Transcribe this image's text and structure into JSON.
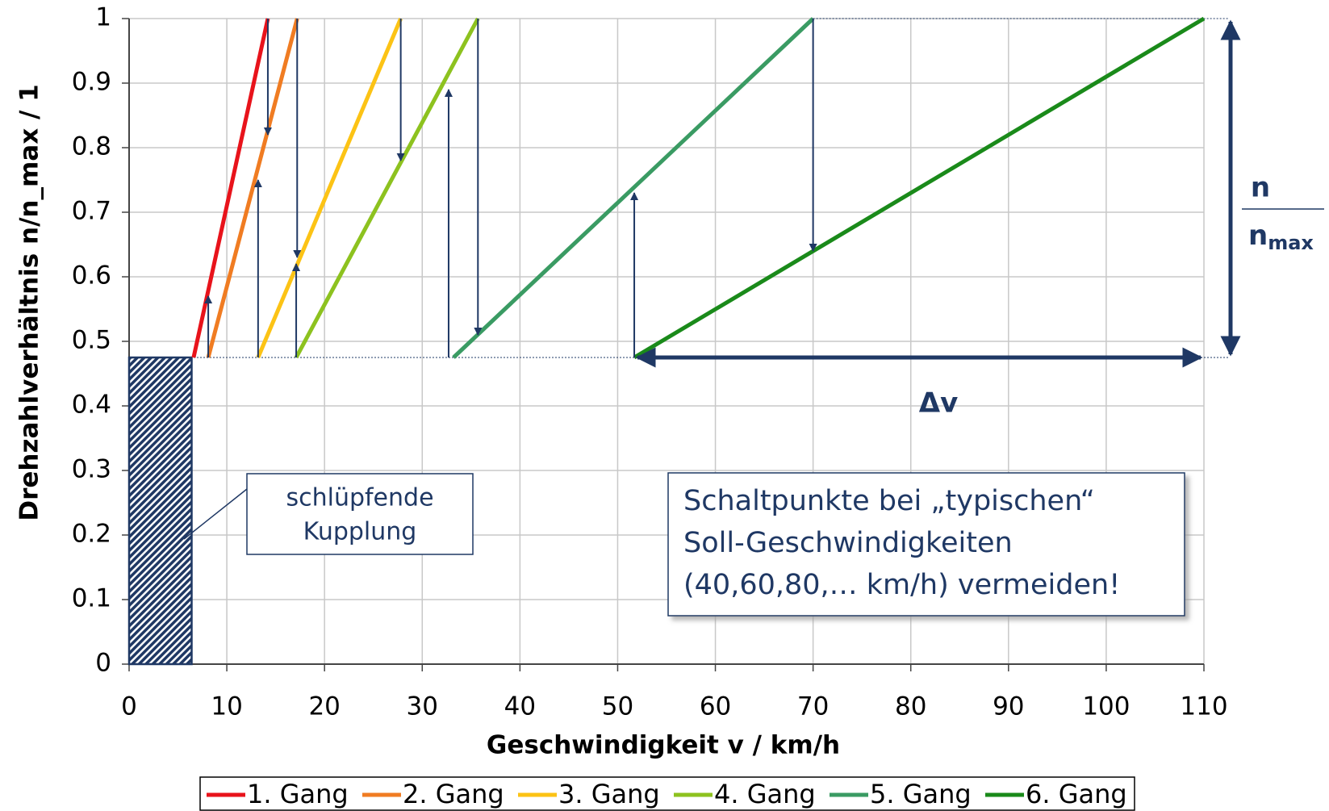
{
  "chart_data": {
    "type": "line",
    "xlabel": "Geschwindigkeit v / km/h",
    "ylabel": "Drehzahlverhältnis n/n_max  / 1",
    "xlim": [
      0,
      110
    ],
    "xticks": [
      0,
      10,
      20,
      30,
      40,
      50,
      60,
      70,
      80,
      90,
      100,
      110
    ],
    "ylim": [
      0,
      1
    ],
    "yticks": [
      0,
      0.1,
      0.2,
      0.3,
      0.4,
      0.5,
      0.6,
      0.7,
      0.8,
      0.9,
      1
    ],
    "grid": true,
    "legend": "bottom",
    "series": [
      {
        "name": "1. Gang",
        "color": "#e8131b",
        "x": [
          6.6,
          14.2
        ],
        "values": [
          0.475,
          1
        ]
      },
      {
        "name": "2. Gang",
        "color": "#f07c22",
        "x": [
          8.1,
          17.2
        ],
        "values": [
          0.475,
          1
        ]
      },
      {
        "name": "3. Gang",
        "color": "#fcc315",
        "x": [
          13.2,
          27.8
        ],
        "values": [
          0.475,
          1
        ]
      },
      {
        "name": "4. Gang",
        "color": "#8dc21f",
        "x": [
          17.1,
          35.7
        ],
        "values": [
          0.475,
          1
        ]
      },
      {
        "name": "5. Gang",
        "color": "#3a9b63",
        "x": [
          33.2,
          70
        ],
        "values": [
          0.475,
          1
        ]
      },
      {
        "name": "6. Gang",
        "color": "#1a8a1a",
        "x": [
          51.7,
          110
        ],
        "values": [
          0.475,
          1
        ]
      }
    ],
    "arrows": [
      {
        "x": 8.1,
        "y": [
          0.475,
          0.57
        ]
      },
      {
        "x": 13.2,
        "y": [
          0.475,
          0.75
        ]
      },
      {
        "x": 17.1,
        "y": [
          0.475,
          0.62
        ]
      },
      {
        "x": 32.7,
        "y": [
          0.475,
          0.89
        ]
      },
      {
        "x": 51.7,
        "y": [
          0.475,
          0.73
        ]
      },
      {
        "x": 14.2,
        "y": [
          1,
          0.82
        ]
      },
      {
        "x": 17.2,
        "y": [
          1,
          0.63
        ]
      },
      {
        "x": 27.8,
        "y": [
          1,
          0.78
        ]
      },
      {
        "x": 35.7,
        "y": [
          1,
          0.51
        ]
      },
      {
        "x": 70,
        "y": [
          1,
          0.64
        ]
      }
    ],
    "slip_region": {
      "x": [
        0,
        6.4
      ],
      "y": [
        0,
        0.475
      ]
    },
    "slip_label": [
      "schlüpfende",
      "Kupplung"
    ],
    "note": [
      "Schaltpunkte bei „typischen“",
      "Soll-Geschwindigkeiten",
      "(40,60,80,… km/h) vermeiden!"
    ],
    "delta_label": "Δv",
    "ratio_label": {
      "numerator": "n",
      "denominator": "n",
      "subscript": "max"
    }
  }
}
